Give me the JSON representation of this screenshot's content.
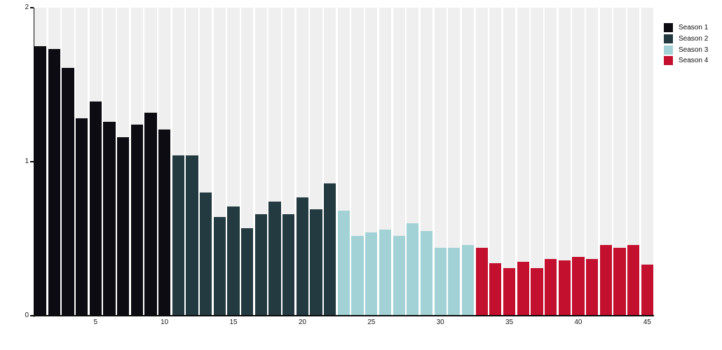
{
  "chart_data": {
    "type": "bar",
    "title": "",
    "xlabel": "",
    "ylabel": "",
    "x_range": [
      1,
      45
    ],
    "ylim": [
      0,
      2
    ],
    "yticks": [
      "0",
      "1",
      "2"
    ],
    "xticks": [
      5,
      10,
      15,
      20,
      25,
      30,
      35,
      40,
      45
    ],
    "grid": false,
    "bar_background_stripes": true,
    "stripe_color": "#f0efef",
    "axis_color": "#0a0a0a",
    "legend_position": "top-right",
    "series": [
      {
        "name": "Season 1",
        "color": "#0c0c12",
        "start_x": 1,
        "values": [
          1.75,
          1.73,
          1.61,
          1.28,
          1.39,
          1.26,
          1.16,
          1.24,
          1.32,
          1.21
        ]
      },
      {
        "name": "Season 2",
        "color": "#233a41",
        "start_x": 11,
        "values": [
          1.04,
          1.04,
          0.8,
          0.64,
          0.71,
          0.57,
          0.66,
          0.74,
          0.66,
          0.77,
          0.69,
          0.86
        ]
      },
      {
        "name": "Season 3",
        "color": "#a3d2d6",
        "start_x": 23,
        "values": [
          0.68,
          0.52,
          0.54,
          0.56,
          0.52,
          0.6,
          0.55,
          0.44,
          0.44,
          0.46
        ]
      },
      {
        "name": "Season 4",
        "color": "#c2102e",
        "start_x": 33,
        "values": [
          0.44,
          0.34,
          0.31,
          0.35,
          0.31,
          0.37,
          0.36,
          0.38,
          0.37,
          0.46,
          0.44,
          0.46,
          0.33
        ]
      }
    ]
  }
}
